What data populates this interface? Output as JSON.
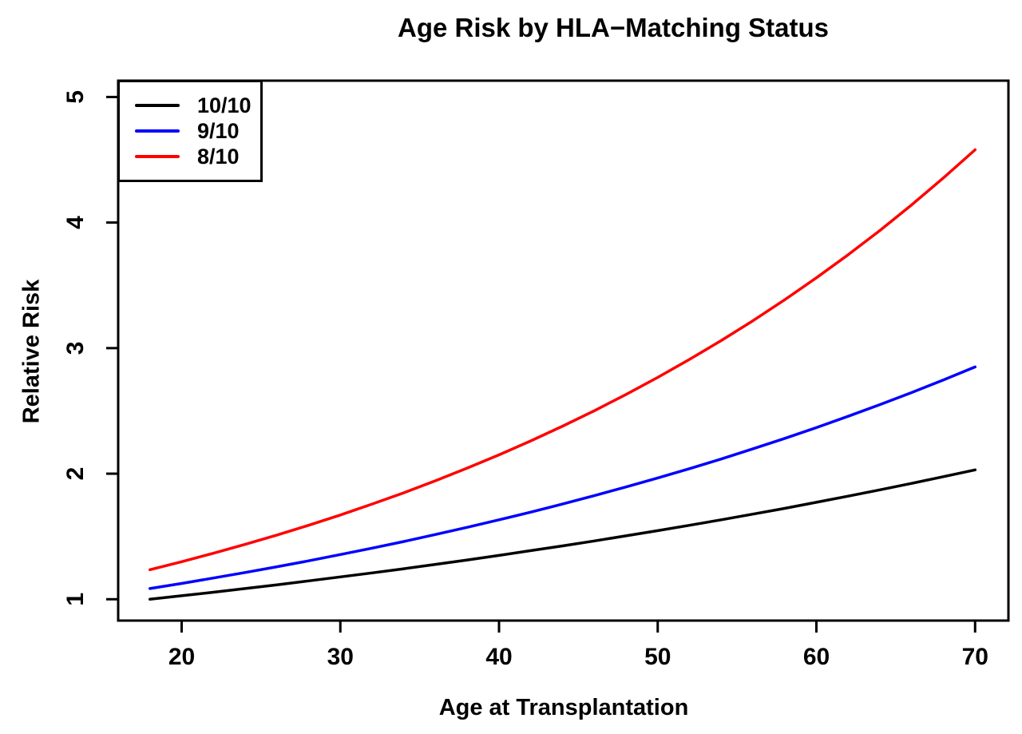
{
  "title": "Age Risk by HLA−Matching Status",
  "colors": {
    "background": "#FFFFFF",
    "frame": "#000000",
    "text": "#000000",
    "series_10_10": "#000000",
    "series_9_10": "#0000FF",
    "series_8_10": "#FF0000"
  },
  "chart_data": {
    "type": "line",
    "title": "Age Risk by HLA−Matching Status",
    "xlabel": "Age at Transplantation",
    "ylabel": "Relative Risk",
    "xlim": [
      16.0,
      72.1
    ],
    "ylim": [
      0.83,
      5.13
    ],
    "xticks": [
      20,
      30,
      40,
      50,
      60,
      70
    ],
    "yticks": [
      1,
      2,
      3,
      4,
      5
    ],
    "grid": false,
    "legend_position": "top-left",
    "x": [
      18,
      20,
      22,
      24,
      26,
      28,
      30,
      32,
      34,
      36,
      38,
      40,
      42,
      44,
      46,
      48,
      50,
      52,
      54,
      56,
      58,
      60,
      62,
      64,
      66,
      68,
      70
    ],
    "series": [
      {
        "name": "10/10",
        "color": "#000000",
        "values": [
          1.0,
          1.028,
          1.056,
          1.085,
          1.115,
          1.146,
          1.178,
          1.21,
          1.243,
          1.278,
          1.313,
          1.349,
          1.387,
          1.425,
          1.464,
          1.505,
          1.546,
          1.589,
          1.633,
          1.678,
          1.724,
          1.772,
          1.821,
          1.871,
          1.923,
          1.976,
          2.03
        ]
      },
      {
        "name": "9/10",
        "color": "#0000FF",
        "values": [
          1.085,
          1.126,
          1.169,
          1.213,
          1.259,
          1.306,
          1.356,
          1.407,
          1.46,
          1.516,
          1.573,
          1.633,
          1.694,
          1.758,
          1.825,
          1.894,
          1.966,
          2.04,
          2.117,
          2.198,
          2.281,
          2.367,
          2.457,
          2.55,
          2.646,
          2.746,
          2.85
        ]
      },
      {
        "name": "8/10",
        "color": "#FF0000",
        "values": [
          1.235,
          1.299,
          1.366,
          1.437,
          1.511,
          1.589,
          1.671,
          1.758,
          1.848,
          1.944,
          2.045,
          2.15,
          2.261,
          2.378,
          2.501,
          2.631,
          2.767,
          2.91,
          3.06,
          3.218,
          3.385,
          3.56,
          3.744,
          3.937,
          4.141,
          4.355,
          4.58
        ]
      }
    ]
  }
}
